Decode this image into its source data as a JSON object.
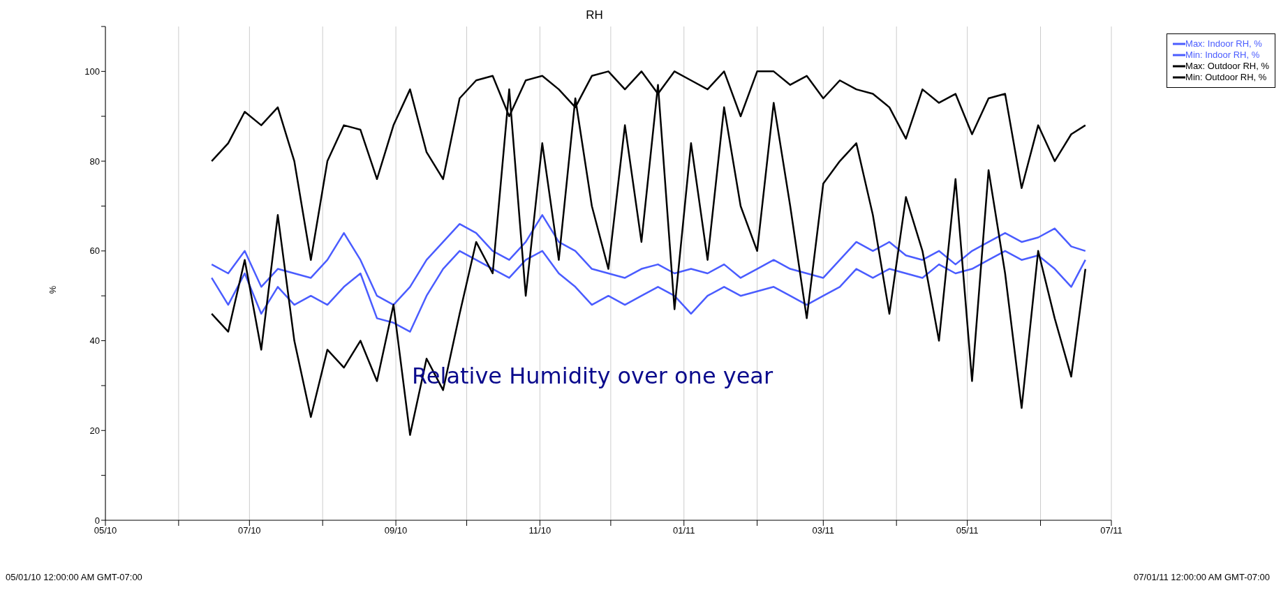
{
  "chart_data": {
    "type": "line",
    "title": "RH",
    "ylabel": "%",
    "annotations": [
      "Relative Humidity  over one year",
      "05/01/10 12:00:00 AM GMT-07:00",
      "07/01/11 12:00:00 AM GMT-07:00"
    ],
    "x": [
      "2010-06-15",
      "2010-06-22",
      "2010-06-29",
      "2010-07-06",
      "2010-07-13",
      "2010-07-20",
      "2010-07-27",
      "2010-08-03",
      "2010-08-10",
      "2010-08-17",
      "2010-08-24",
      "2010-08-31",
      "2010-09-07",
      "2010-09-14",
      "2010-09-21",
      "2010-09-28",
      "2010-10-05",
      "2010-10-12",
      "2010-10-19",
      "2010-10-26",
      "2010-11-02",
      "2010-11-09",
      "2010-11-16",
      "2010-11-23",
      "2010-11-30",
      "2010-12-07",
      "2010-12-14",
      "2010-12-21",
      "2010-12-28",
      "2011-01-04",
      "2011-01-11",
      "2011-01-18",
      "2011-01-25",
      "2011-02-01",
      "2011-02-08",
      "2011-02-15",
      "2011-02-22",
      "2011-03-01",
      "2011-03-08",
      "2011-03-15",
      "2011-03-22",
      "2011-03-29",
      "2011-04-05",
      "2011-04-12",
      "2011-04-19",
      "2011-04-26",
      "2011-05-03",
      "2011-05-10",
      "2011-05-17",
      "2011-05-24",
      "2011-05-31",
      "2011-06-07",
      "2011-06-14",
      "2011-06-20"
    ],
    "series": [
      {
        "name": "Max: Indoor RH, %",
        "color": "#4a5cff",
        "values": [
          57,
          55,
          60,
          52,
          56,
          55,
          54,
          58,
          64,
          58,
          50,
          48,
          52,
          58,
          62,
          66,
          64,
          60,
          58,
          62,
          68,
          62,
          60,
          56,
          55,
          54,
          56,
          57,
          55,
          56,
          55,
          57,
          54,
          56,
          58,
          56,
          55,
          54,
          58,
          62,
          60,
          62,
          59,
          58,
          60,
          57,
          60,
          62,
          64,
          62,
          63,
          65,
          61,
          60
        ]
      },
      {
        "name": "Min: Indoor RH, %",
        "color": "#4a5cff",
        "values": [
          54,
          48,
          55,
          46,
          52,
          48,
          50,
          48,
          52,
          55,
          45,
          44,
          42,
          50,
          56,
          60,
          58,
          56,
          54,
          58,
          60,
          55,
          52,
          48,
          50,
          48,
          50,
          52,
          50,
          46,
          50,
          52,
          50,
          51,
          52,
          50,
          48,
          50,
          52,
          56,
          54,
          56,
          55,
          54,
          57,
          55,
          56,
          58,
          60,
          58,
          59,
          56,
          52,
          58
        ]
      },
      {
        "name": "Max: Outdoor RH, %",
        "color": "#000000",
        "values": [
          80,
          84,
          91,
          88,
          92,
          80,
          58,
          80,
          88,
          87,
          76,
          88,
          96,
          82,
          76,
          94,
          98,
          99,
          90,
          98,
          99,
          96,
          92,
          99,
          100,
          96,
          100,
          95,
          100,
          98,
          96,
          100,
          90,
          100,
          100,
          97,
          99,
          94,
          98,
          96,
          95,
          92,
          85,
          96,
          93,
          95,
          86,
          94,
          95,
          74,
          88,
          80,
          86,
          88
        ]
      },
      {
        "name": "Min: Outdoor RH, %",
        "color": "#000000",
        "values": [
          46,
          42,
          58,
          38,
          68,
          40,
          23,
          38,
          34,
          40,
          31,
          48,
          19,
          36,
          29,
          46,
          62,
          55,
          96,
          50,
          84,
          58,
          94,
          70,
          56,
          88,
          62,
          97,
          47,
          84,
          58,
          92,
          70,
          60,
          93,
          70,
          45,
          75,
          80,
          84,
          68,
          46,
          72,
          60,
          40,
          76,
          31,
          78,
          55,
          25,
          60,
          45,
          32,
          56
        ]
      }
    ],
    "xlim": [
      "2010-05-01",
      "2011-07-01"
    ],
    "xticks": [
      {
        "value": "2010-05-01",
        "label": "05/10"
      },
      {
        "value": "2010-06-01",
        "label": null
      },
      {
        "value": "2010-07-01",
        "label": "07/10"
      },
      {
        "value": "2010-08-01",
        "label": null
      },
      {
        "value": "2010-09-01",
        "label": "09/10"
      },
      {
        "value": "2010-10-01",
        "label": null
      },
      {
        "value": "2010-11-01",
        "label": "11/10"
      },
      {
        "value": "2010-12-01",
        "label": null
      },
      {
        "value": "2011-01-01",
        "label": "01/11"
      },
      {
        "value": "2011-02-01",
        "label": null
      },
      {
        "value": "2011-03-01",
        "label": "03/11"
      },
      {
        "value": "2011-04-01",
        "label": null
      },
      {
        "value": "2011-05-01",
        "label": "05/11"
      },
      {
        "value": "2011-06-01",
        "label": null
      },
      {
        "value": "2011-07-01",
        "label": "07/11"
      }
    ],
    "ylim": [
      0,
      110
    ],
    "yticks": [
      0,
      {
        "value": 10,
        "label": null
      },
      20,
      {
        "value": 30,
        "label": null
      },
      40,
      {
        "value": 50,
        "label": null
      },
      60,
      {
        "value": 70,
        "label": null
      },
      80,
      {
        "value": 90,
        "label": null
      },
      100,
      {
        "value": 110,
        "label": null
      }
    ],
    "grid": "x",
    "legend": "top right",
    "marker": "none",
    "line_style": "solid"
  }
}
